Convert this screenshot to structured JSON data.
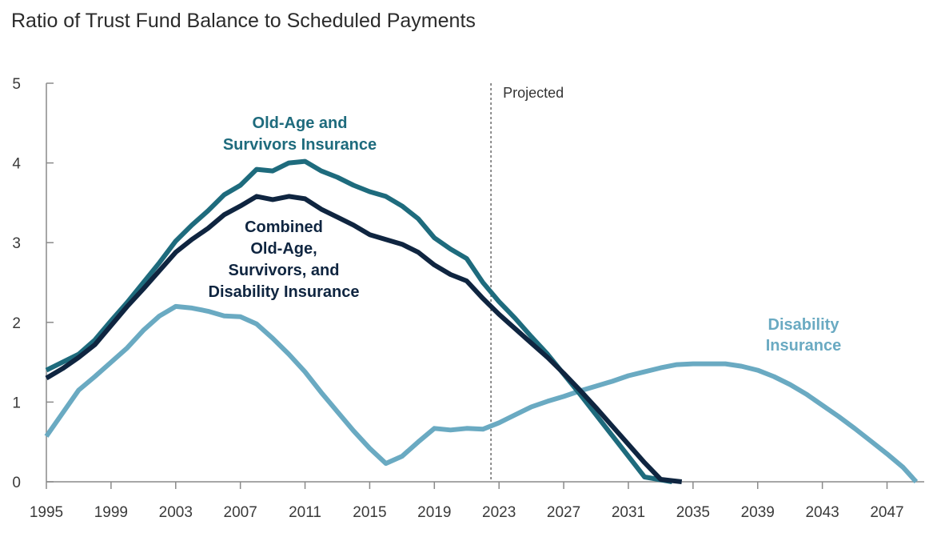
{
  "chart_data": {
    "type": "line",
    "title": "Ratio of Trust Fund Balance to Scheduled Payments",
    "xlabel": "",
    "ylabel": "",
    "xlim": [
      1995,
      2050
    ],
    "ylim": [
      0,
      5
    ],
    "x_ticks": [
      1995,
      1999,
      2003,
      2007,
      2011,
      2015,
      2019,
      2023,
      2027,
      2031,
      2035,
      2039,
      2043,
      2047
    ],
    "y_ticks": [
      0,
      1,
      2,
      3,
      4,
      5
    ],
    "projection_start": 2022.5,
    "projection_label": "Projected",
    "series": [
      {
        "name": "Old-Age and Survivors Insurance",
        "label_lines": [
          "Old-Age and",
          "Survivors Insurance"
        ],
        "color": "#1e6b7d",
        "points": [
          [
            1995,
            1.4
          ],
          [
            1996,
            1.5
          ],
          [
            1997,
            1.6
          ],
          [
            1998,
            1.78
          ],
          [
            1999,
            2.02
          ],
          [
            2000,
            2.25
          ],
          [
            2001,
            2.5
          ],
          [
            2002,
            2.75
          ],
          [
            2003,
            3.02
          ],
          [
            2004,
            3.22
          ],
          [
            2005,
            3.4
          ],
          [
            2006,
            3.6
          ],
          [
            2007,
            3.72
          ],
          [
            2008,
            3.92
          ],
          [
            2009,
            3.9
          ],
          [
            2010,
            4.0
          ],
          [
            2011,
            4.02
          ],
          [
            2012,
            3.9
          ],
          [
            2013,
            3.82
          ],
          [
            2014,
            3.72
          ],
          [
            2015,
            3.64
          ],
          [
            2016,
            3.58
          ],
          [
            2017,
            3.46
          ],
          [
            2018,
            3.3
          ],
          [
            2019,
            3.06
          ],
          [
            2020,
            2.92
          ],
          [
            2021,
            2.8
          ],
          [
            2022,
            2.5
          ],
          [
            2023,
            2.26
          ],
          [
            2024,
            2.05
          ],
          [
            2025,
            1.82
          ],
          [
            2026,
            1.6
          ],
          [
            2027,
            1.35
          ],
          [
            2028,
            1.1
          ],
          [
            2029,
            0.84
          ],
          [
            2030,
            0.58
          ],
          [
            2031,
            0.32
          ],
          [
            2032,
            0.06
          ],
          [
            2033.7,
            0.0
          ]
        ]
      },
      {
        "name": "Combined Old-Age, Survivors, and Disability Insurance",
        "label_lines": [
          "Combined",
          "Old-Age,",
          "Survivors, and",
          "Disability Insurance"
        ],
        "color": "#0f2540",
        "points": [
          [
            1995,
            1.3
          ],
          [
            1996,
            1.42
          ],
          [
            1997,
            1.56
          ],
          [
            1998,
            1.72
          ],
          [
            1999,
            1.96
          ],
          [
            2000,
            2.2
          ],
          [
            2001,
            2.42
          ],
          [
            2002,
            2.65
          ],
          [
            2003,
            2.88
          ],
          [
            2004,
            3.04
          ],
          [
            2005,
            3.18
          ],
          [
            2006,
            3.35
          ],
          [
            2007,
            3.46
          ],
          [
            2008,
            3.58
          ],
          [
            2009,
            3.54
          ],
          [
            2010,
            3.58
          ],
          [
            2011,
            3.55
          ],
          [
            2012,
            3.42
          ],
          [
            2013,
            3.32
          ],
          [
            2014,
            3.22
          ],
          [
            2015,
            3.1
          ],
          [
            2016,
            3.04
          ],
          [
            2017,
            2.98
          ],
          [
            2018,
            2.88
          ],
          [
            2019,
            2.72
          ],
          [
            2020,
            2.6
          ],
          [
            2021,
            2.52
          ],
          [
            2022,
            2.3
          ],
          [
            2023,
            2.1
          ],
          [
            2024,
            1.92
          ],
          [
            2025,
            1.74
          ],
          [
            2026,
            1.56
          ],
          [
            2027,
            1.36
          ],
          [
            2028,
            1.15
          ],
          [
            2029,
            0.93
          ],
          [
            2030,
            0.7
          ],
          [
            2031,
            0.47
          ],
          [
            2032,
            0.24
          ],
          [
            2033,
            0.03
          ],
          [
            2034.3,
            0.0
          ]
        ]
      },
      {
        "name": "Disability Insurance",
        "label_lines": [
          "Disability",
          "Insurance"
        ],
        "color": "#6aaac2",
        "points": [
          [
            1995,
            0.57
          ],
          [
            1996,
            0.86
          ],
          [
            1997,
            1.15
          ],
          [
            1998,
            1.32
          ],
          [
            1999,
            1.5
          ],
          [
            2000,
            1.68
          ],
          [
            2001,
            1.9
          ],
          [
            2002,
            2.08
          ],
          [
            2003,
            2.2
          ],
          [
            2004,
            2.18
          ],
          [
            2005,
            2.14
          ],
          [
            2006,
            2.08
          ],
          [
            2007,
            2.07
          ],
          [
            2008,
            1.98
          ],
          [
            2009,
            1.8
          ],
          [
            2010,
            1.6
          ],
          [
            2011,
            1.38
          ],
          [
            2012,
            1.12
          ],
          [
            2013,
            0.88
          ],
          [
            2014,
            0.64
          ],
          [
            2015,
            0.42
          ],
          [
            2016,
            0.23
          ],
          [
            2017,
            0.32
          ],
          [
            2018,
            0.5
          ],
          [
            2019,
            0.67
          ],
          [
            2020,
            0.65
          ],
          [
            2021,
            0.67
          ],
          [
            2022,
            0.66
          ],
          [
            2023,
            0.74
          ],
          [
            2024,
            0.84
          ],
          [
            2025,
            0.94
          ],
          [
            2026,
            1.01
          ],
          [
            2027,
            1.07
          ],
          [
            2028,
            1.14
          ],
          [
            2029,
            1.2
          ],
          [
            2030,
            1.26
          ],
          [
            2031,
            1.33
          ],
          [
            2032,
            1.38
          ],
          [
            2033,
            1.43
          ],
          [
            2034,
            1.47
          ],
          [
            2035,
            1.48
          ],
          [
            2036,
            1.48
          ],
          [
            2037,
            1.48
          ],
          [
            2038,
            1.45
          ],
          [
            2039,
            1.4
          ],
          [
            2040,
            1.32
          ],
          [
            2041,
            1.22
          ],
          [
            2042,
            1.1
          ],
          [
            2043,
            0.96
          ],
          [
            2044,
            0.82
          ],
          [
            2045,
            0.67
          ],
          [
            2046,
            0.51
          ],
          [
            2047,
            0.35
          ],
          [
            2048,
            0.18
          ],
          [
            2048.8,
            0.0
          ]
        ]
      }
    ]
  }
}
